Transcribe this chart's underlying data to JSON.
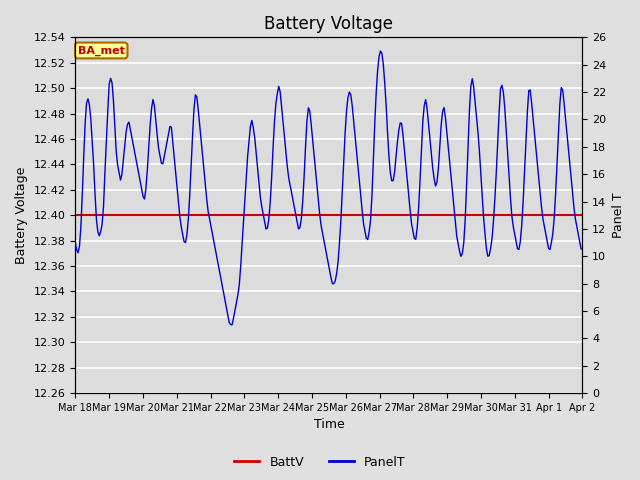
{
  "title": "Battery Voltage",
  "xlabel": "Time",
  "ylabel_left": "Battery Voltage",
  "ylabel_right": "Panel T",
  "legend_label_red": "BattV",
  "legend_label_blue": "PanelT",
  "annotation_text": "BA_met",
  "annotation_bg": "#FFFF99",
  "annotation_border": "#AA6600",
  "annotation_text_color": "#BB0000",
  "batt_voltage": 12.4,
  "ylim_left": [
    12.26,
    12.54
  ],
  "ylim_right": [
    0,
    26
  ],
  "x_tick_labels": [
    "Mar 18",
    "Mar 19",
    "Mar 20",
    "Mar 21",
    "Mar 22",
    "Mar 23",
    "Mar 24",
    "Mar 25",
    "Mar 26",
    "Mar 27",
    "Mar 28",
    "Mar 29",
    "Mar 30",
    "Mar 31",
    "Apr 1",
    "Apr 2"
  ],
  "background_color": "#E0E0E0",
  "plot_bg_color": "#DCDCDC",
  "grid_color": "#FFFFFF",
  "line_color_blue": "#0000CC",
  "line_color_red": "#CC0000",
  "panel_t_points": [
    11.0,
    10.5,
    10.2,
    10.5,
    11.5,
    13.5,
    16.0,
    18.5,
    20.5,
    21.5,
    21.5,
    21.0,
    20.0,
    18.5,
    17.0,
    15.0,
    13.0,
    12.0,
    11.5,
    11.5,
    12.0,
    12.5,
    14.0,
    16.5,
    18.5,
    20.5,
    22.5,
    23.0,
    23.0,
    22.0,
    20.5,
    18.5,
    17.0,
    16.5,
    16.0,
    15.5,
    16.0,
    17.0,
    18.0,
    19.0,
    19.5,
    20.0,
    19.5,
    19.0,
    18.5,
    18.0,
    17.5,
    17.0,
    16.5,
    16.0,
    15.5,
    15.0,
    14.5,
    14.0,
    14.5,
    15.5,
    17.0,
    18.5,
    20.0,
    21.0,
    21.5,
    21.0,
    20.0,
    19.0,
    18.0,
    17.5,
    17.0,
    16.5,
    17.0,
    17.5,
    18.0,
    18.5,
    19.0,
    19.5,
    19.5,
    18.5,
    17.5,
    16.5,
    15.5,
    14.5,
    13.5,
    12.5,
    12.0,
    11.5,
    11.0,
    11.0,
    11.5,
    12.5,
    14.0,
    16.0,
    18.0,
    20.0,
    21.5,
    22.0,
    21.5,
    20.5,
    19.5,
    18.5,
    17.5,
    16.5,
    15.5,
    14.5,
    13.5,
    13.0,
    12.5,
    12.0,
    11.5,
    11.0,
    10.5,
    10.0,
    9.5,
    9.0,
    8.5,
    8.0,
    7.5,
    7.0,
    6.5,
    6.0,
    5.5,
    5.0,
    5.0,
    5.0,
    5.5,
    6.0,
    6.5,
    7.0,
    7.5,
    8.5,
    10.0,
    11.5,
    13.0,
    14.5,
    16.0,
    17.5,
    18.5,
    19.5,
    20.0,
    19.5,
    19.0,
    18.0,
    17.0,
    16.0,
    15.0,
    14.0,
    13.5,
    13.0,
    12.5,
    12.0,
    12.0,
    12.5,
    13.5,
    15.0,
    17.0,
    19.0,
    20.5,
    21.5,
    22.0,
    22.5,
    22.0,
    21.0,
    20.0,
    19.0,
    18.0,
    17.0,
    16.0,
    15.5,
    15.0,
    14.5,
    14.0,
    13.5,
    13.0,
    12.5,
    12.0,
    12.0,
    12.5,
    13.5,
    15.0,
    17.0,
    19.0,
    20.5,
    21.0,
    20.5,
    19.5,
    18.5,
    17.5,
    16.5,
    15.5,
    14.5,
    13.5,
    12.5,
    12.0,
    11.5,
    11.0,
    10.5,
    10.0,
    9.5,
    9.0,
    8.5,
    8.0,
    8.0,
    8.0,
    8.5,
    9.0,
    10.0,
    11.5,
    13.0,
    15.0,
    17.0,
    19.0,
    20.5,
    21.5,
    22.0,
    22.0,
    21.5,
    20.5,
    19.5,
    18.5,
    17.5,
    16.5,
    15.5,
    14.5,
    13.5,
    12.5,
    12.0,
    11.5,
    11.0,
    11.5,
    12.0,
    13.0,
    15.0,
    17.5,
    20.0,
    22.0,
    23.5,
    24.5,
    25.0,
    25.0,
    24.5,
    23.5,
    22.0,
    20.5,
    18.5,
    17.0,
    16.0,
    15.5,
    15.5,
    16.0,
    17.0,
    18.0,
    19.0,
    19.5,
    20.0,
    19.5,
    18.5,
    17.5,
    16.5,
    15.5,
    14.5,
    13.5,
    12.5,
    12.0,
    11.5,
    11.0,
    11.5,
    12.5,
    14.0,
    16.0,
    18.0,
    20.0,
    21.0,
    21.5,
    21.0,
    20.0,
    19.0,
    18.0,
    17.0,
    16.0,
    15.5,
    15.0,
    15.5,
    16.5,
    18.0,
    19.5,
    20.5,
    21.0,
    20.5,
    19.5,
    18.5,
    17.5,
    16.5,
    15.5,
    14.5,
    13.5,
    12.5,
    11.5,
    11.0,
    10.5,
    10.0,
    10.0,
    10.5,
    11.5,
    13.5,
    16.0,
    18.5,
    21.0,
    22.5,
    23.0,
    22.5,
    21.5,
    20.5,
    19.5,
    18.5,
    17.0,
    15.5,
    14.0,
    12.5,
    11.5,
    10.5,
    10.0,
    10.0,
    10.5,
    11.0,
    12.0,
    13.5,
    15.0,
    17.0,
    19.0,
    21.0,
    22.5,
    22.5,
    22.0,
    21.0,
    19.5,
    18.0,
    16.5,
    15.0,
    13.5,
    12.5,
    12.0,
    11.5,
    11.0,
    10.5,
    10.5,
    11.0,
    12.0,
    13.5,
    15.5,
    17.5,
    19.5,
    21.5,
    22.5,
    22.0,
    21.0,
    20.0,
    19.0,
    18.0,
    17.0,
    16.0,
    15.0,
    14.0,
    13.0,
    12.5,
    12.0,
    11.5,
    11.0,
    10.5,
    10.5,
    11.0,
    11.5,
    12.5,
    14.0,
    16.0,
    18.0,
    20.0,
    22.0,
    22.5,
    22.0,
    21.0,
    20.0,
    19.0,
    18.0,
    17.0,
    16.0,
    15.0,
    14.0,
    13.0,
    12.5,
    12.0,
    11.5,
    11.0,
    10.5,
    10.5
  ]
}
